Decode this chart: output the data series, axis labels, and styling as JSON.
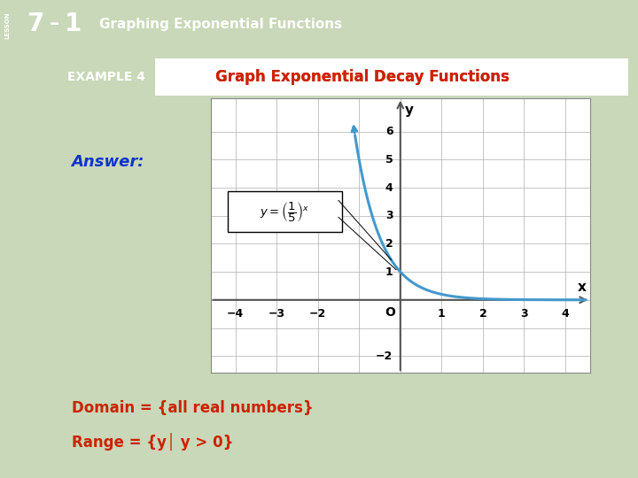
{
  "title_bar_text": "7 – 1   Graphing Exponential Functions",
  "example_label": "EXAMPLE 4",
  "example_title": "Graph Exponential Decay Functions",
  "answer_label": "Answer:",
  "domain_text": "Domain = {all real numbers}",
  "range_text": "Range = {y│ y > 0}",
  "function_label": "y = (1/5)^x",
  "curve_color": "#4499cc",
  "curve_linewidth": 2.2,
  "xlim": [
    -4.6,
    4.6
  ],
  "ylim": [
    -2.6,
    7.2
  ],
  "x_ticks": [
    -4,
    -3,
    -2,
    -1,
    0,
    1,
    2,
    3,
    4
  ],
  "y_ticks": [
    -2,
    -1,
    0,
    1,
    2,
    3,
    4,
    5,
    6
  ],
  "grid_color": "#bbbbbb",
  "axis_color": "#555555",
  "background_slide": "#c8d8b8",
  "background_white": "#ffffff",
  "header_green": "#3a8a2a",
  "header_gold": "#c8a020",
  "example_bg": "#3a7a3a",
  "example_title_color": "#cc2200",
  "answer_color": "#1133cc",
  "domain_range_color": "#cc2200",
  "slide_inner_bg": "#f0f4ec"
}
